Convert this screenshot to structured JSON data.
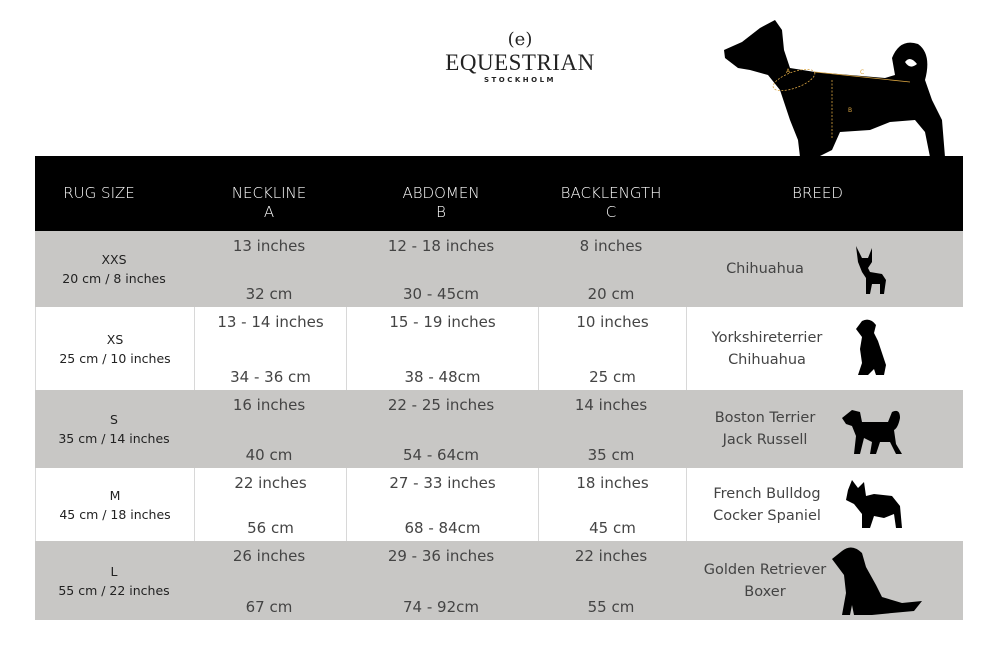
{
  "brand": {
    "mark": "(e)",
    "name": "EQUESTRIAN",
    "sub": "STOCKHOLM"
  },
  "diagram_labels": {
    "a": "A",
    "b": "B",
    "c": "C"
  },
  "colors": {
    "header_bg": "#000000",
    "row_gray": "#c8c7c5",
    "measure_lines": "#d9a441"
  },
  "headers": [
    {
      "line1": "RUG SIZE",
      "line2": ""
    },
    {
      "line1": "NECKLINE",
      "line2": "A"
    },
    {
      "line1": "ABDOMEN",
      "line2": "B"
    },
    {
      "line1": "BACKLENGTH",
      "line2": "C"
    },
    {
      "line1": "BREED",
      "line2": ""
    }
  ],
  "rows": [
    {
      "size": "XXS",
      "length": "20 cm / 8 inches",
      "neck_in": "13 inches",
      "neck_cm": "32 cm",
      "abd_in": "12 - 18 inches",
      "abd_cm": "30 - 45cm",
      "back_in": "8 inches",
      "back_cm": "20 cm",
      "breed1": "Chihuahua",
      "breed2": "",
      "icon": "chihuahua-icon"
    },
    {
      "size": "XS",
      "length": "25 cm / 10 inches",
      "neck_in": "13 - 14 inches",
      "neck_cm": "34 - 36 cm",
      "abd_in": "15 - 19 inches",
      "abd_cm": "38 - 48cm",
      "back_in": "10 inches",
      "back_cm": "25 cm",
      "breed1": "Yorkshireterrier",
      "breed2": "Chihuahua",
      "icon": "yorkshire-terrier-icon"
    },
    {
      "size": "S",
      "length": "35 cm / 14 inches",
      "neck_in": "16 inches",
      "neck_cm": "40 cm",
      "abd_in": "22 - 25 inches",
      "abd_cm": "54 - 64cm",
      "back_in": "14 inches",
      "back_cm": "35 cm",
      "breed1": "Boston Terrier",
      "breed2": "Jack Russell",
      "icon": "jack-russell-icon"
    },
    {
      "size": "M",
      "length": "45 cm / 18 inches",
      "neck_in": "22 inches",
      "neck_cm": "56 cm",
      "abd_in": "27 - 33 inches",
      "abd_cm": "68 - 84cm",
      "back_in": "18 inches",
      "back_cm": "45 cm",
      "breed1": "French Bulldog",
      "breed2": "Cocker Spaniel",
      "icon": "french-bulldog-icon"
    },
    {
      "size": "L",
      "length": "55 cm / 22 inches",
      "neck_in": "26 inches",
      "neck_cm": "67 cm",
      "abd_in": "29 - 36 inches",
      "abd_cm": "74 - 92cm",
      "back_in": "22 inches",
      "back_cm": "55 cm",
      "breed1": "Golden Retriever",
      "breed2": "Boxer",
      "icon": "golden-retriever-icon"
    }
  ]
}
